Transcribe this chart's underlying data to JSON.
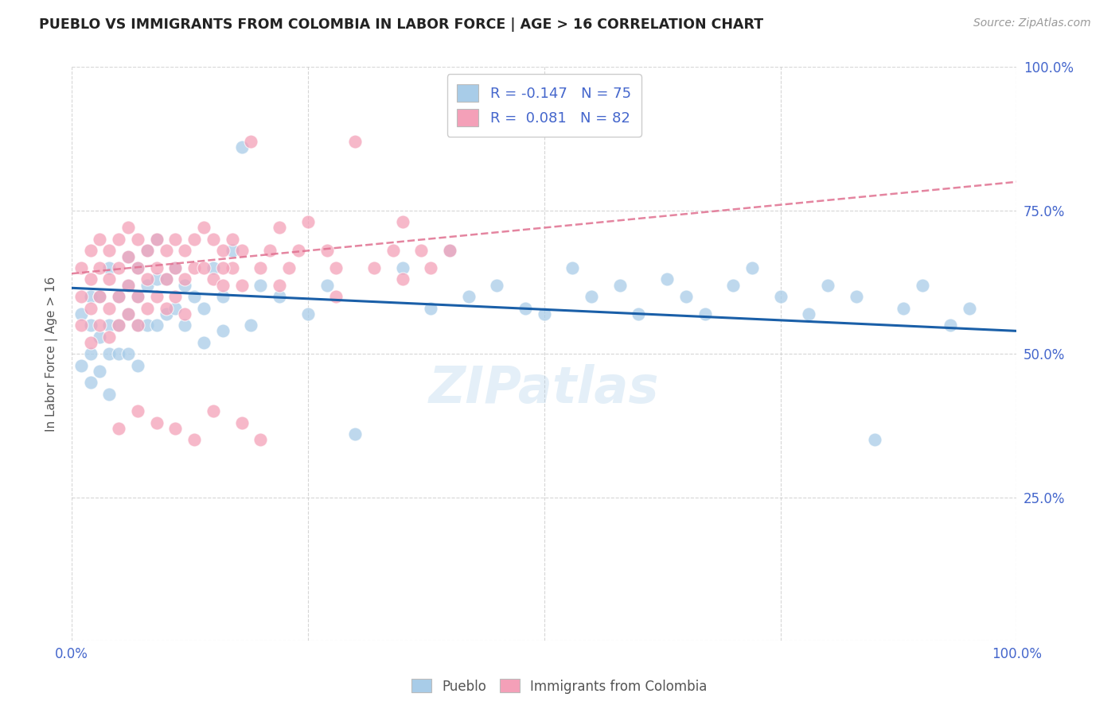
{
  "title": "PUEBLO VS IMMIGRANTS FROM COLOMBIA IN LABOR FORCE | AGE > 16 CORRELATION CHART",
  "source_text": "Source: ZipAtlas.com",
  "ylabel": "In Labor Force | Age > 16",
  "xmin": 0.0,
  "xmax": 1.0,
  "ymin": 0.0,
  "ymax": 1.0,
  "blue_dot_color": "#a8cce8",
  "pink_dot_color": "#f4a0b8",
  "blue_line_color": "#1a5fa8",
  "pink_line_color": "#e07090",
  "grid_color": "#cccccc",
  "background_color": "#ffffff",
  "tick_color": "#4466cc",
  "title_color": "#222222",
  "source_color": "#999999",
  "ylabel_color": "#555555",
  "watermark": "ZIPatlas",
  "blue_scatter_x": [
    0.01,
    0.01,
    0.02,
    0.02,
    0.02,
    0.02,
    0.03,
    0.03,
    0.03,
    0.04,
    0.04,
    0.04,
    0.04,
    0.05,
    0.05,
    0.05,
    0.06,
    0.06,
    0.06,
    0.06,
    0.07,
    0.07,
    0.07,
    0.07,
    0.08,
    0.08,
    0.08,
    0.09,
    0.09,
    0.09,
    0.1,
    0.1,
    0.11,
    0.11,
    0.12,
    0.12,
    0.13,
    0.14,
    0.14,
    0.15,
    0.16,
    0.16,
    0.17,
    0.18,
    0.19,
    0.2,
    0.22,
    0.25,
    0.27,
    0.3,
    0.35,
    0.38,
    0.4,
    0.42,
    0.45,
    0.48,
    0.5,
    0.53,
    0.55,
    0.58,
    0.6,
    0.63,
    0.65,
    0.67,
    0.7,
    0.72,
    0.75,
    0.78,
    0.8,
    0.83,
    0.85,
    0.88,
    0.9,
    0.93,
    0.95
  ],
  "blue_scatter_y": [
    0.57,
    0.48,
    0.55,
    0.6,
    0.5,
    0.45,
    0.6,
    0.53,
    0.47,
    0.65,
    0.55,
    0.5,
    0.43,
    0.6,
    0.55,
    0.5,
    0.67,
    0.62,
    0.57,
    0.5,
    0.65,
    0.6,
    0.55,
    0.48,
    0.68,
    0.62,
    0.55,
    0.7,
    0.63,
    0.55,
    0.63,
    0.57,
    0.65,
    0.58,
    0.62,
    0.55,
    0.6,
    0.58,
    0.52,
    0.65,
    0.6,
    0.54,
    0.68,
    0.86,
    0.55,
    0.62,
    0.6,
    0.57,
    0.62,
    0.36,
    0.65,
    0.58,
    0.68,
    0.6,
    0.62,
    0.58,
    0.57,
    0.65,
    0.6,
    0.62,
    0.57,
    0.63,
    0.6,
    0.57,
    0.62,
    0.65,
    0.6,
    0.57,
    0.62,
    0.6,
    0.35,
    0.58,
    0.62,
    0.55,
    0.58
  ],
  "pink_scatter_x": [
    0.01,
    0.01,
    0.01,
    0.02,
    0.02,
    0.02,
    0.02,
    0.03,
    0.03,
    0.03,
    0.03,
    0.04,
    0.04,
    0.04,
    0.04,
    0.05,
    0.05,
    0.05,
    0.05,
    0.06,
    0.06,
    0.06,
    0.06,
    0.07,
    0.07,
    0.07,
    0.07,
    0.08,
    0.08,
    0.08,
    0.09,
    0.09,
    0.09,
    0.1,
    0.1,
    0.1,
    0.11,
    0.11,
    0.11,
    0.12,
    0.12,
    0.12,
    0.13,
    0.13,
    0.14,
    0.14,
    0.15,
    0.15,
    0.16,
    0.16,
    0.17,
    0.17,
    0.18,
    0.18,
    0.19,
    0.2,
    0.21,
    0.22,
    0.23,
    0.24,
    0.25,
    0.27,
    0.28,
    0.3,
    0.32,
    0.34,
    0.35,
    0.37,
    0.38,
    0.4,
    0.2,
    0.18,
    0.15,
    0.13,
    0.11,
    0.09,
    0.07,
    0.05,
    0.16,
    0.22,
    0.28,
    0.35
  ],
  "pink_scatter_y": [
    0.65,
    0.6,
    0.55,
    0.68,
    0.63,
    0.58,
    0.52,
    0.7,
    0.65,
    0.6,
    0.55,
    0.68,
    0.63,
    0.58,
    0.53,
    0.7,
    0.65,
    0.6,
    0.55,
    0.72,
    0.67,
    0.62,
    0.57,
    0.7,
    0.65,
    0.6,
    0.55,
    0.68,
    0.63,
    0.58,
    0.7,
    0.65,
    0.6,
    0.68,
    0.63,
    0.58,
    0.7,
    0.65,
    0.6,
    0.68,
    0.63,
    0.57,
    0.7,
    0.65,
    0.72,
    0.65,
    0.7,
    0.63,
    0.68,
    0.62,
    0.7,
    0.65,
    0.68,
    0.62,
    0.87,
    0.65,
    0.68,
    0.72,
    0.65,
    0.68,
    0.73,
    0.68,
    0.65,
    0.87,
    0.65,
    0.68,
    0.73,
    0.68,
    0.65,
    0.68,
    0.35,
    0.38,
    0.4,
    0.35,
    0.37,
    0.38,
    0.4,
    0.37,
    0.65,
    0.62,
    0.6,
    0.63
  ],
  "blue_line_y_start": 0.615,
  "blue_line_y_end": 0.54,
  "pink_line_y_start": 0.64,
  "pink_line_y_end": 0.8
}
